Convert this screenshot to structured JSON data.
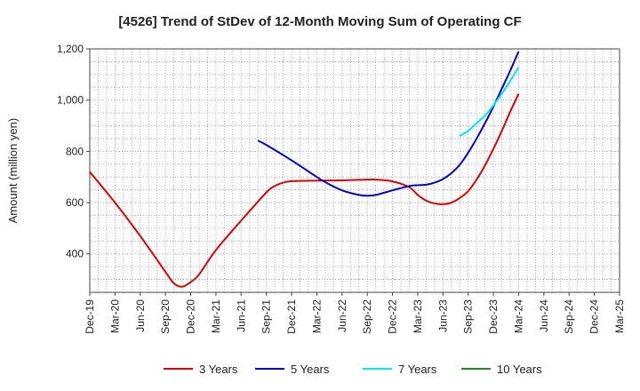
{
  "chart_data": {
    "type": "line",
    "title": "[4526]  Trend of StDev of 12-Month Moving Sum of Operating CF",
    "ylabel": "Amount (million yen)",
    "xlabel": "",
    "ylim": [
      250,
      1200
    ],
    "yticks": [
      400,
      600,
      800,
      1000,
      1200
    ],
    "ytick_labels": [
      "400",
      "600",
      "800",
      "1,000",
      "1,200"
    ],
    "x_start": "Dec-19",
    "x_end": "Mar-25",
    "xtick_labels": [
      "Dec-19",
      "Mar-20",
      "Jun-20",
      "Sep-20",
      "Dec-20",
      "Mar-21",
      "Jun-21",
      "Sep-21",
      "Dec-21",
      "Mar-22",
      "Jun-22",
      "Sep-22",
      "Dec-22",
      "Mar-23",
      "Jun-23",
      "Sep-23",
      "Dec-23",
      "Mar-24",
      "Jun-24",
      "Sep-24",
      "Dec-24",
      "Mar-25"
    ],
    "grid": true,
    "legend_position": "bottom",
    "series": [
      {
        "name": "3 Years",
        "color": "#dd0000",
        "points": [
          [
            "Dec-19",
            720
          ],
          [
            "Mar-20",
            600
          ],
          [
            "Jun-20",
            470
          ],
          [
            "Sep-20",
            330
          ],
          [
            "Oct-20",
            285
          ],
          [
            "Nov-20",
            272
          ],
          [
            "Dec-20",
            290
          ],
          [
            "Jan-21",
            320
          ],
          [
            "Mar-21",
            415
          ],
          [
            "Jun-21",
            530
          ],
          [
            "Sep-21",
            640
          ],
          [
            "Oct-21",
            665
          ],
          [
            "Nov-21",
            678
          ],
          [
            "Dec-21",
            684
          ],
          [
            "Mar-22",
            686
          ],
          [
            "Jun-22",
            687
          ],
          [
            "Sep-22",
            690
          ],
          [
            "Oct-22",
            690
          ],
          [
            "Dec-22",
            683
          ],
          [
            "Feb-23",
            660
          ],
          [
            "Mar-23",
            630
          ],
          [
            "Apr-23",
            608
          ],
          [
            "May-23",
            597
          ],
          [
            "Jun-23",
            594
          ],
          [
            "Jul-23",
            600
          ],
          [
            "Aug-23",
            618
          ],
          [
            "Sep-23",
            645
          ],
          [
            "Oct-23",
            690
          ],
          [
            "Nov-23",
            745
          ],
          [
            "Dec-23",
            810
          ],
          [
            "Jan-24",
            880
          ],
          [
            "Feb-24",
            955
          ],
          [
            "Mar-24",
            1025
          ]
        ]
      },
      {
        "name": "5 Years",
        "color": "#0000cc",
        "points": [
          [
            "Aug-21",
            842
          ],
          [
            "Sep-21",
            825
          ],
          [
            "Dec-21",
            765
          ],
          [
            "Mar-22",
            700
          ],
          [
            "Apr-22",
            680
          ],
          [
            "Jun-22",
            648
          ],
          [
            "Aug-22",
            630
          ],
          [
            "Sep-22",
            627
          ],
          [
            "Oct-22",
            630
          ],
          [
            "Dec-22",
            648
          ],
          [
            "Feb-23",
            665
          ],
          [
            "Mar-23",
            668
          ],
          [
            "Apr-23",
            670
          ],
          [
            "May-23",
            678
          ],
          [
            "Jun-23",
            692
          ],
          [
            "Jul-23",
            715
          ],
          [
            "Aug-23",
            748
          ],
          [
            "Sep-23",
            795
          ],
          [
            "Oct-23",
            850
          ],
          [
            "Nov-23",
            910
          ],
          [
            "Dec-23",
            975
          ],
          [
            "Jan-24",
            1045
          ],
          [
            "Feb-24",
            1115
          ],
          [
            "Mar-24",
            1190
          ]
        ]
      },
      {
        "name": "7 Years",
        "color": "#00e5ee",
        "points": [
          [
            "Aug-23",
            860
          ],
          [
            "Sep-23",
            880
          ],
          [
            "Oct-23",
            910
          ],
          [
            "Nov-23",
            940
          ],
          [
            "Dec-23",
            980
          ],
          [
            "Jan-24",
            1025
          ],
          [
            "Feb-24",
            1075
          ],
          [
            "Mar-24",
            1128
          ]
        ]
      },
      {
        "name": "10 Years",
        "color": "#228b22",
        "points": []
      }
    ]
  }
}
